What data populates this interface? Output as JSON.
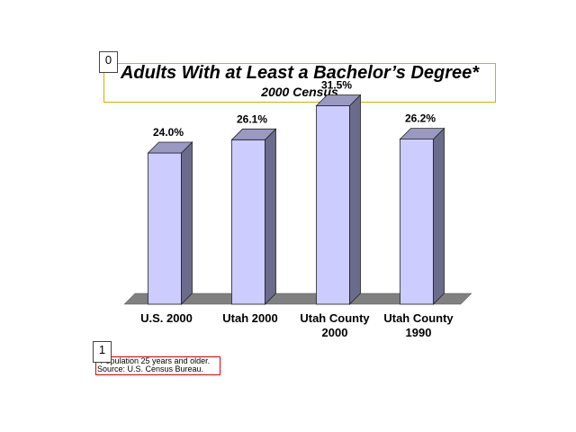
{
  "annotations": [
    "0",
    "1"
  ],
  "chart_data": {
    "type": "bar",
    "title": "Adults With at Least a Bachelor’s Degree*",
    "subtitle": "2000 Census",
    "categories": [
      [
        "U.S. 2000"
      ],
      [
        "Utah 2000"
      ],
      [
        "Utah County",
        "2000"
      ],
      [
        "Utah County",
        "1990"
      ]
    ],
    "values": [
      24.0,
      26.1,
      31.5,
      26.2
    ],
    "value_labels": [
      "24.0%",
      "26.1%",
      "31.5%",
      "26.2%"
    ],
    "xlabel": "",
    "ylabel": "",
    "ylim": [
      0,
      35
    ],
    "grid": false,
    "legend": "none",
    "colors": {
      "bar_front": "#ccccff",
      "bar_side": "#6b6b8c",
      "bar_top": "#9999c2",
      "floor": "#808080"
    }
  },
  "footnotes": [
    "*Population 25 years and older.",
    "Source: U.S. Census Bureau."
  ]
}
